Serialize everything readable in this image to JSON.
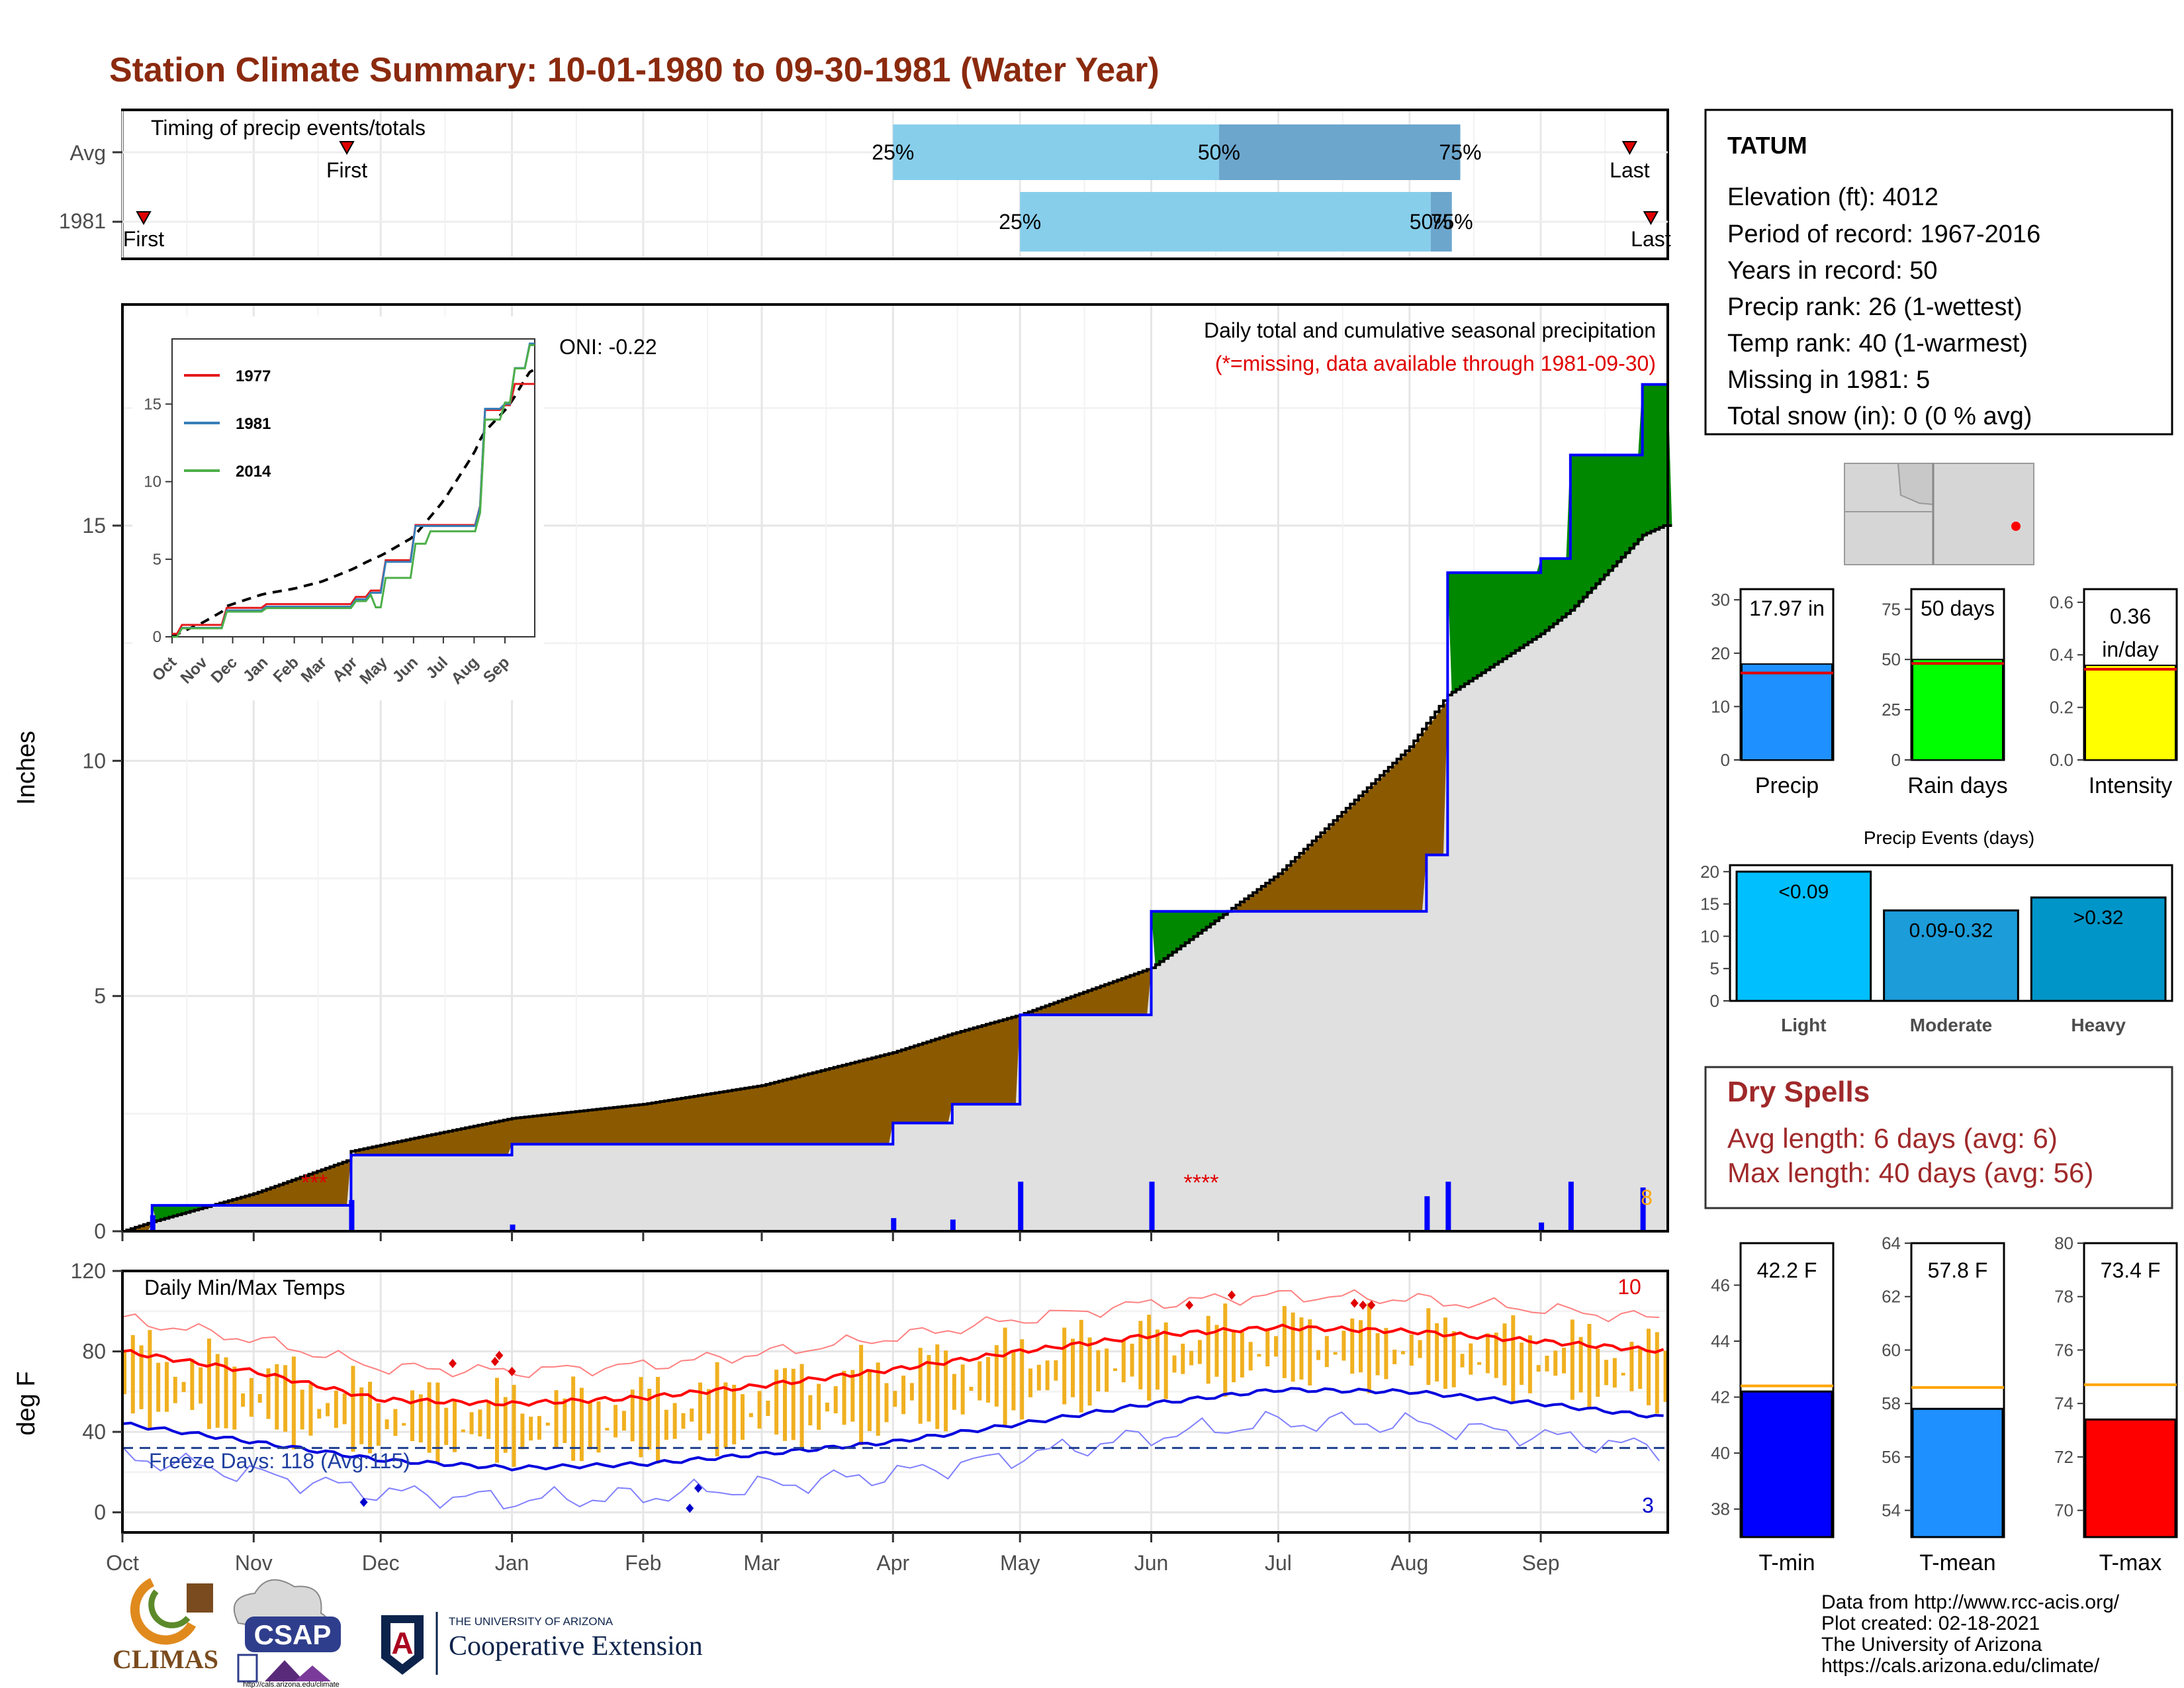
{
  "title": "Station Climate Summary: 10-01-1980 to 09-30-1981 (Water Year)",
  "colors": {
    "title": "#8B2A0E",
    "dry": "#A0292A",
    "brown": "#8B5A00",
    "green": "#008800",
    "gray": "#E0E0E0",
    "obs": "#0000FF",
    "rec": "#000000",
    "tbar": "#F0B020"
  },
  "timing": {
    "label": "Timing of precip events/totals",
    "rows": [
      {
        "label": "Avg",
        "first_label": "First",
        "last_label": "Last",
        "p25_label": "25%",
        "p50_label": "50%",
        "p75_label": "75%",
        "first": "Nov 23",
        "last": "Sep 22",
        "q25": "Apr 1",
        "q50": "Jun 17",
        "q75": "Aug 13"
      },
      {
        "label": "1981",
        "first_label": "First",
        "last_label": "Last",
        "p25_label": "25%",
        "p50_label": "50%",
        "p75_label": "75%",
        "first": "Oct 6",
        "last": "Sep 27",
        "q25": "May 1",
        "q50": "Aug 6",
        "q75": "Aug 11"
      }
    ]
  },
  "info": {
    "station": "TATUM",
    "lines": [
      "Elevation (ft): 4012",
      "Period of record: 1967-2016",
      "Years in record: 50",
      "Precip rank: 26 (1-wettest)",
      "Temp rank: 40 (1-warmest)",
      "Missing in 1981: 5",
      "Total snow (in): 0 (0 % avg)"
    ]
  },
  "main_precip": {
    "ylabel": "Inches",
    "oni": "ONI: -0.22",
    "title": "Daily total and cumulative seasonal precipitation",
    "subtitle": "(*=missing, data available through 1981-09-30)",
    "top_count": "8",
    "yticks": [
      "0",
      "5",
      "10",
      "15"
    ],
    "months": [
      "Oct",
      "Nov",
      "Dec",
      "Jan",
      "Feb",
      "Mar",
      "Apr",
      "May",
      "Jun",
      "Jul",
      "Aug",
      "Sep"
    ]
  },
  "inset": {
    "legend": [
      "1977",
      "1981",
      "2014"
    ],
    "yticks": [
      "0",
      "5",
      "10",
      "15"
    ],
    "months": [
      "Oct",
      "Nov",
      "Dec",
      "Jan",
      "Feb",
      "Mar",
      "Apr",
      "May",
      "Jun",
      "Jul",
      "Aug",
      "Sep"
    ]
  },
  "temp": {
    "ylabel": "deg F",
    "title": "Daily Min/Max Temps",
    "freeze": "Freeze Days: 118 (Avg:115)",
    "count_hot": "10",
    "count_cold": "3",
    "yticks": [
      "0",
      "40",
      "80",
      "120"
    ]
  },
  "summary_bars": [
    {
      "name": "Precip",
      "label": "17.97 in",
      "value": 17.97,
      "avg": 16.3,
      "ymax": 32,
      "ticks": [
        "0",
        "10",
        "20",
        "30"
      ],
      "color": "#1E90FF"
    },
    {
      "name": "Rain days",
      "label": "50 days",
      "value": 50,
      "avg": 48,
      "ymax": 85,
      "ticks": [
        "0",
        "25",
        "50",
        "75"
      ],
      "color": "#00FF00"
    },
    {
      "name": "Intensity",
      "label": "0.36 in/day",
      "value": 0.36,
      "avg": 0.345,
      "ymax": 0.65,
      "ticks": [
        "0.0",
        "0.2",
        "0.4",
        "0.6"
      ],
      "color": "#FFFF00"
    }
  ],
  "events": {
    "title": "Precip Events (days)",
    "categories": [
      "Light",
      "Moderate",
      "Heavy"
    ],
    "labels": [
      "<0.09",
      "0.09-0.32",
      ">0.32"
    ],
    "values": [
      20,
      14,
      16
    ],
    "yticks": [
      "0",
      "5",
      "10",
      "15",
      "20"
    ]
  },
  "dry_spells": {
    "title": "Dry Spells",
    "avg": "Avg length: 6 days (avg: 6)",
    "max": "Max length: 40 days (avg: 56)"
  },
  "temp_bars": [
    {
      "name": "T-min",
      "label": "42.2 F",
      "value": 42.2,
      "avg": 42.4,
      "ymin": 37,
      "ymax": 47.5,
      "ticks": [
        "38",
        "40",
        "42",
        "44",
        "46"
      ],
      "color": "#0000FF"
    },
    {
      "name": "T-mean",
      "label": "57.8 F",
      "value": 57.8,
      "avg": 58.6,
      "ymin": 53,
      "ymax": 64,
      "ticks": [
        "54",
        "56",
        "58",
        "60",
        "62",
        "64"
      ],
      "color": "#1E90FF"
    },
    {
      "name": "T-max",
      "label": "73.4 F",
      "value": 73.4,
      "avg": 74.7,
      "ymin": 69,
      "ymax": 80,
      "ticks": [
        "70",
        "72",
        "74",
        "76",
        "78",
        "80"
      ],
      "color": "#FF0000"
    }
  ],
  "footer": {
    "lines": [
      "Data from http://www.rcc-acis.org/",
      "Plot created: 02-18-2021",
      "The University of Arizona",
      "https://cals.arizona.edu/climate/"
    ],
    "climas": "CLIMAS",
    "csap": "CSAP",
    "csap_url": "http://cals.arizona.edu/climate",
    "ua_small": "THE UNIVERSITY OF ARIZONA",
    "ua_big": "Cooperative Extension"
  },
  "chart_data": [
    {
      "type": "area",
      "title": "Daily total and cumulative seasonal precipitation",
      "ylabel": "Inches",
      "ylim": [
        0,
        19.7
      ],
      "x": [
        "Oct 1",
        "Oct 8",
        "Nov 1",
        "Nov 23",
        "Nov 24",
        "Dec 10",
        "Jan 1",
        "Feb 1",
        "Mar 1",
        "Apr 1",
        "Apr 15",
        "May 1",
        "Jun 1",
        "Jul 1",
        "Aug 1",
        "Aug 5",
        "Aug 10",
        "Sep 1",
        "Sep 8",
        "Sep 25",
        "Sep 30"
      ],
      "series": [
        {
          "name": "1981 cumulative",
          "values": [
            0,
            0.55,
            0.55,
            0.55,
            1.62,
            1.62,
            1.85,
            1.85,
            1.85,
            2.3,
            2.7,
            4.6,
            6.8,
            6.8,
            6.8,
            8.0,
            14.0,
            14.3,
            16.5,
            18.0,
            18.0
          ]
        },
        {
          "name": "Average cumulative",
          "values": [
            0,
            0.2,
            0.8,
            1.5,
            1.7,
            2.0,
            2.4,
            2.7,
            3.1,
            3.8,
            4.2,
            4.6,
            5.6,
            7.6,
            10.3,
            10.8,
            11.4,
            12.7,
            13.2,
            14.8,
            15.0
          ]
        }
      ]
    },
    {
      "type": "line",
      "title": "Daily Min/Max Temps",
      "ylabel": "deg F",
      "ylim": [
        -10,
        120
      ],
      "x": [
        "Oct",
        "Nov",
        "Dec",
        "Jan",
        "Feb",
        "Mar",
        "Apr",
        "May",
        "Jun",
        "Jul",
        "Aug",
        "Sep",
        "Oct"
      ],
      "series": [
        {
          "name": "Average max",
          "values": [
            80,
            70,
            56,
            54,
            57,
            63,
            71,
            80,
            88,
            92,
            90,
            85,
            80
          ]
        },
        {
          "name": "Average min",
          "values": [
            44,
            35,
            26,
            22,
            24,
            29,
            35,
            44,
            54,
            61,
            60,
            54,
            47
          ]
        }
      ]
    },
    {
      "type": "bar",
      "title": "Precip Events (days)",
      "categories": [
        "Light",
        "Moderate",
        "Heavy"
      ],
      "values": [
        20,
        14,
        16
      ]
    }
  ]
}
